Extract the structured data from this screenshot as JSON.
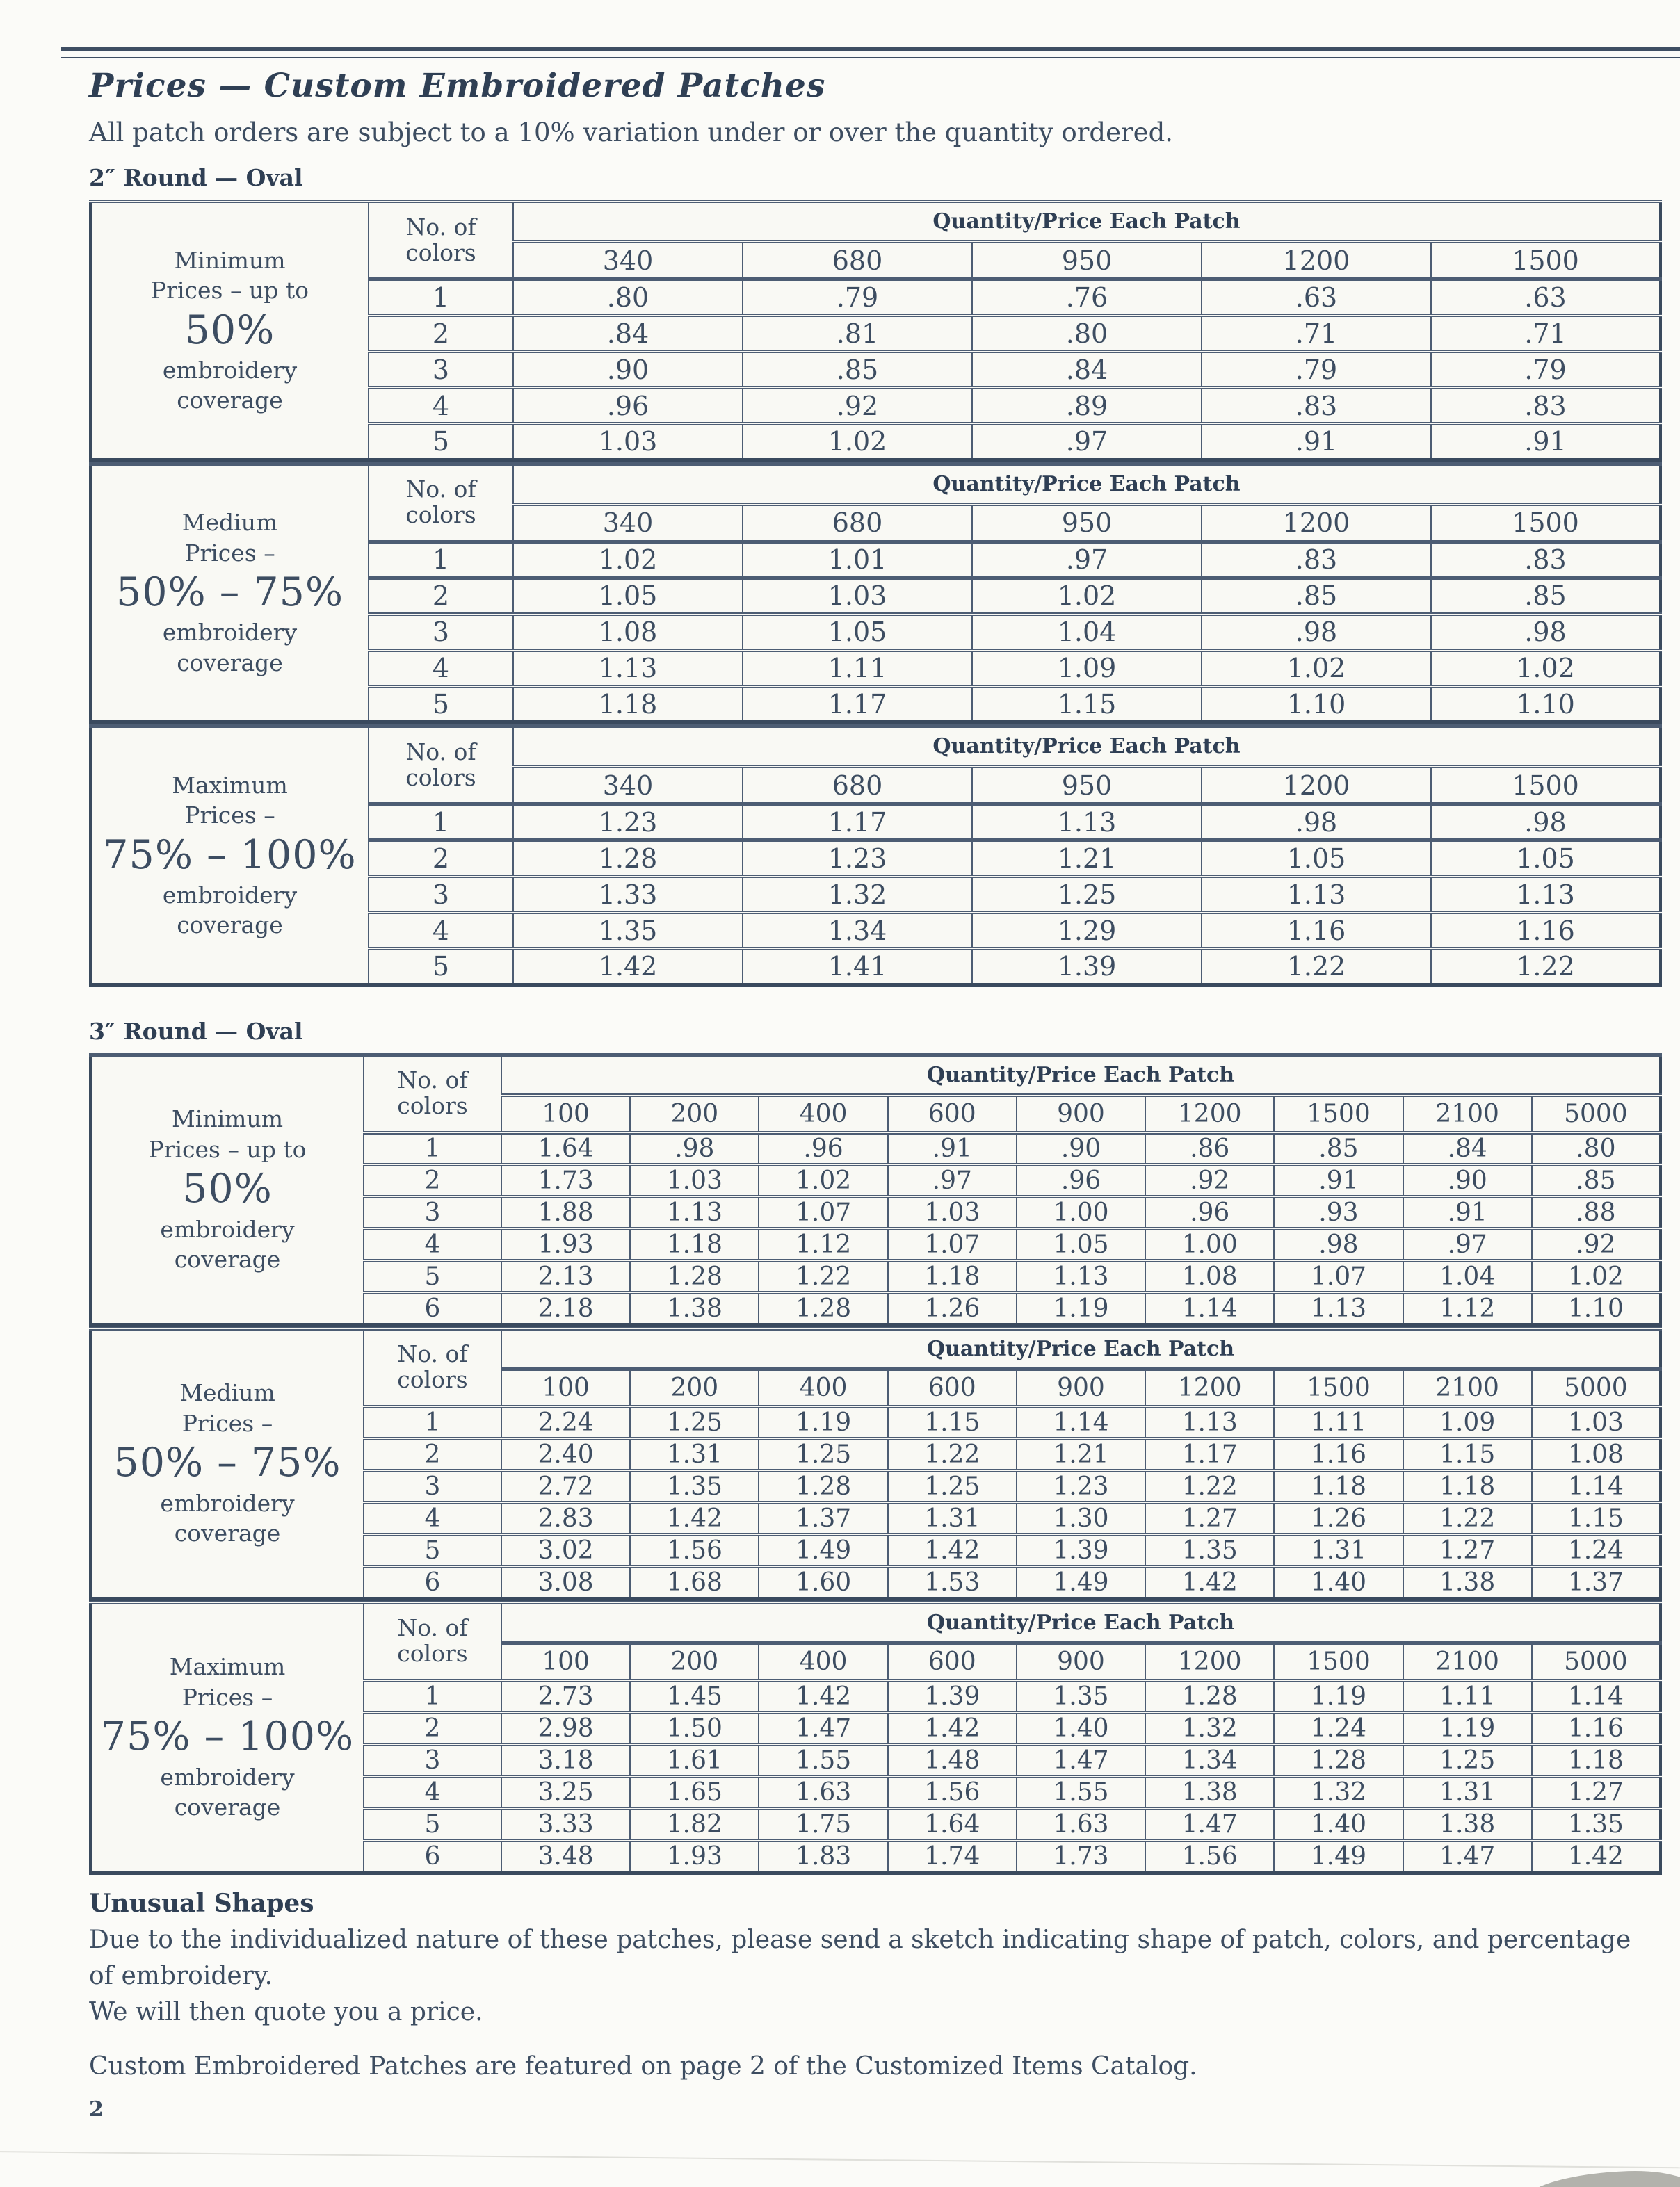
{
  "page": {
    "title": "Prices — Custom Embroidered Patches",
    "subtitle": "All patch orders are subject to a 10% variation under or over the quantity ordered.",
    "page_number": "2"
  },
  "notes": {
    "heading": "Unusual Shapes",
    "body_lines": [
      "Due to the individualized nature of these patches, please send a sketch indicating shape of patch, colors, and percentage of embroidery.",
      "We will then quote you a price."
    ],
    "catalog_note": "Custom Embroidered Patches are featured on page 2 of the Customized Items Catalog."
  },
  "sections": [
    {
      "id": "2-inch",
      "heading": "2″ Round — Oval",
      "tables": [
        {
          "id": "minimum",
          "label": {
            "top_lines": [
              "Minimum",
              "Prices – up to"
            ],
            "highlight": "50%",
            "bottom_lines": [
              "embroidery",
              "coverage"
            ]
          },
          "colors_header_lines": [
            "No. of",
            "colors"
          ],
          "qty_header": "Quantity/Price Each Patch",
          "quantities": [
            "340",
            "680",
            "950",
            "1200",
            "1500"
          ],
          "rows": [
            {
              "colors": "1",
              "prices": [
                ".80",
                ".79",
                ".76",
                ".63",
                ".63"
              ]
            },
            {
              "colors": "2",
              "prices": [
                ".84",
                ".81",
                ".80",
                ".71",
                ".71"
              ]
            },
            {
              "colors": "3",
              "prices": [
                ".90",
                ".85",
                ".84",
                ".79",
                ".79"
              ]
            },
            {
              "colors": "4",
              "prices": [
                ".96",
                ".92",
                ".89",
                ".83",
                ".83"
              ]
            },
            {
              "colors": "5",
              "prices": [
                "1.03",
                "1.02",
                ".97",
                ".91",
                ".91"
              ]
            }
          ]
        },
        {
          "id": "medium",
          "label": {
            "top_lines": [
              "Medium",
              "Prices –"
            ],
            "highlight": "50% – 75%",
            "bottom_lines": [
              "embroidery",
              "coverage"
            ]
          },
          "colors_header_lines": [
            "No. of",
            "colors"
          ],
          "qty_header": "Quantity/Price Each Patch",
          "quantities": [
            "340",
            "680",
            "950",
            "1200",
            "1500"
          ],
          "rows": [
            {
              "colors": "1",
              "prices": [
                "1.02",
                "1.01",
                ".97",
                ".83",
                ".83"
              ]
            },
            {
              "colors": "2",
              "prices": [
                "1.05",
                "1.03",
                "1.02",
                ".85",
                ".85"
              ]
            },
            {
              "colors": "3",
              "prices": [
                "1.08",
                "1.05",
                "1.04",
                ".98",
                ".98"
              ]
            },
            {
              "colors": "4",
              "prices": [
                "1.13",
                "1.11",
                "1.09",
                "1.02",
                "1.02"
              ]
            },
            {
              "colors": "5",
              "prices": [
                "1.18",
                "1.17",
                "1.15",
                "1.10",
                "1.10"
              ]
            }
          ]
        },
        {
          "id": "maximum",
          "label": {
            "top_lines": [
              "Maximum",
              "Prices –"
            ],
            "highlight": "75% – 100%",
            "bottom_lines": [
              "embroidery",
              "coverage"
            ]
          },
          "colors_header_lines": [
            "No. of",
            "colors"
          ],
          "qty_header": "Quantity/Price Each Patch",
          "quantities": [
            "340",
            "680",
            "950",
            "1200",
            "1500"
          ],
          "rows": [
            {
              "colors": "1",
              "prices": [
                "1.23",
                "1.17",
                "1.13",
                ".98",
                ".98"
              ]
            },
            {
              "colors": "2",
              "prices": [
                "1.28",
                "1.23",
                "1.21",
                "1.05",
                "1.05"
              ]
            },
            {
              "colors": "3",
              "prices": [
                "1.33",
                "1.32",
                "1.25",
                "1.13",
                "1.13"
              ]
            },
            {
              "colors": "4",
              "prices": [
                "1.35",
                "1.34",
                "1.29",
                "1.16",
                "1.16"
              ]
            },
            {
              "colors": "5",
              "prices": [
                "1.42",
                "1.41",
                "1.39",
                "1.22",
                "1.22"
              ]
            }
          ]
        }
      ]
    },
    {
      "id": "3-inch",
      "heading": "3″ Round — Oval",
      "tables": [
        {
          "id": "minimum",
          "label": {
            "top_lines": [
              "Minimum",
              "Prices – up to"
            ],
            "highlight": "50%",
            "bottom_lines": [
              "embroidery",
              "coverage"
            ]
          },
          "colors_header_lines": [
            "No. of",
            "colors"
          ],
          "qty_header": "Quantity/Price Each Patch",
          "quantities": [
            "100",
            "200",
            "400",
            "600",
            "900",
            "1200",
            "1500",
            "2100",
            "5000"
          ],
          "rows": [
            {
              "colors": "1",
              "prices": [
                "1.64",
                ".98",
                ".96",
                ".91",
                ".90",
                ".86",
                ".85",
                ".84",
                ".80"
              ]
            },
            {
              "colors": "2",
              "prices": [
                "1.73",
                "1.03",
                "1.02",
                ".97",
                ".96",
                ".92",
                ".91",
                ".90",
                ".85"
              ]
            },
            {
              "colors": "3",
              "prices": [
                "1.88",
                "1.13",
                "1.07",
                "1.03",
                "1.00",
                ".96",
                ".93",
                ".91",
                ".88"
              ]
            },
            {
              "colors": "4",
              "prices": [
                "1.93",
                "1.18",
                "1.12",
                "1.07",
                "1.05",
                "1.00",
                ".98",
                ".97",
                ".92"
              ]
            },
            {
              "colors": "5",
              "prices": [
                "2.13",
                "1.28",
                "1.22",
                "1.18",
                "1.13",
                "1.08",
                "1.07",
                "1.04",
                "1.02"
              ]
            },
            {
              "colors": "6",
              "prices": [
                "2.18",
                "1.38",
                "1.28",
                "1.26",
                "1.19",
                "1.14",
                "1.13",
                "1.12",
                "1.10"
              ]
            }
          ]
        },
        {
          "id": "medium",
          "label": {
            "top_lines": [
              "Medium",
              "Prices –"
            ],
            "highlight": "50% – 75%",
            "bottom_lines": [
              "embroidery",
              "coverage"
            ]
          },
          "colors_header_lines": [
            "No. of",
            "colors"
          ],
          "qty_header": "Quantity/Price Each Patch",
          "quantities": [
            "100",
            "200",
            "400",
            "600",
            "900",
            "1200",
            "1500",
            "2100",
            "5000"
          ],
          "rows": [
            {
              "colors": "1",
              "prices": [
                "2.24",
                "1.25",
                "1.19",
                "1.15",
                "1.14",
                "1.13",
                "1.11",
                "1.09",
                "1.03"
              ]
            },
            {
              "colors": "2",
              "prices": [
                "2.40",
                "1.31",
                "1.25",
                "1.22",
                "1.21",
                "1.17",
                "1.16",
                "1.15",
                "1.08"
              ]
            },
            {
              "colors": "3",
              "prices": [
                "2.72",
                "1.35",
                "1.28",
                "1.25",
                "1.23",
                "1.22",
                "1.18",
                "1.18",
                "1.14"
              ]
            },
            {
              "colors": "4",
              "prices": [
                "2.83",
                "1.42",
                "1.37",
                "1.31",
                "1.30",
                "1.27",
                "1.26",
                "1.22",
                "1.15"
              ]
            },
            {
              "colors": "5",
              "prices": [
                "3.02",
                "1.56",
                "1.49",
                "1.42",
                "1.39",
                "1.35",
                "1.31",
                "1.27",
                "1.24"
              ]
            },
            {
              "colors": "6",
              "prices": [
                "3.08",
                "1.68",
                "1.60",
                "1.53",
                "1.49",
                "1.42",
                "1.40",
                "1.38",
                "1.37"
              ]
            }
          ]
        },
        {
          "id": "maximum",
          "label": {
            "top_lines": [
              "Maximum",
              "Prices –"
            ],
            "highlight": "75% – 100%",
            "bottom_lines": [
              "embroidery",
              "coverage"
            ]
          },
          "colors_header_lines": [
            "No. of",
            "colors"
          ],
          "qty_header": "Quantity/Price Each Patch",
          "quantities": [
            "100",
            "200",
            "400",
            "600",
            "900",
            "1200",
            "1500",
            "2100",
            "5000"
          ],
          "rows": [
            {
              "colors": "1",
              "prices": [
                "2.73",
                "1.45",
                "1.42",
                "1.39",
                "1.35",
                "1.28",
                "1.19",
                "1.11",
                "1.14"
              ]
            },
            {
              "colors": "2",
              "prices": [
                "2.98",
                "1.50",
                "1.47",
                "1.42",
                "1.40",
                "1.32",
                "1.24",
                "1.19",
                "1.16"
              ]
            },
            {
              "colors": "3",
              "prices": [
                "3.18",
                "1.61",
                "1.55",
                "1.48",
                "1.47",
                "1.34",
                "1.28",
                "1.25",
                "1.18"
              ]
            },
            {
              "colors": "4",
              "prices": [
                "3.25",
                "1.65",
                "1.63",
                "1.56",
                "1.55",
                "1.38",
                "1.32",
                "1.31",
                "1.27"
              ]
            },
            {
              "colors": "5",
              "prices": [
                "3.33",
                "1.82",
                "1.75",
                "1.64",
                "1.63",
                "1.47",
                "1.40",
                "1.38",
                "1.35"
              ]
            },
            {
              "colors": "6",
              "prices": [
                "3.48",
                "1.93",
                "1.83",
                "1.74",
                "1.73",
                "1.56",
                "1.49",
                "1.47",
                "1.42"
              ]
            }
          ]
        }
      ]
    }
  ]
}
